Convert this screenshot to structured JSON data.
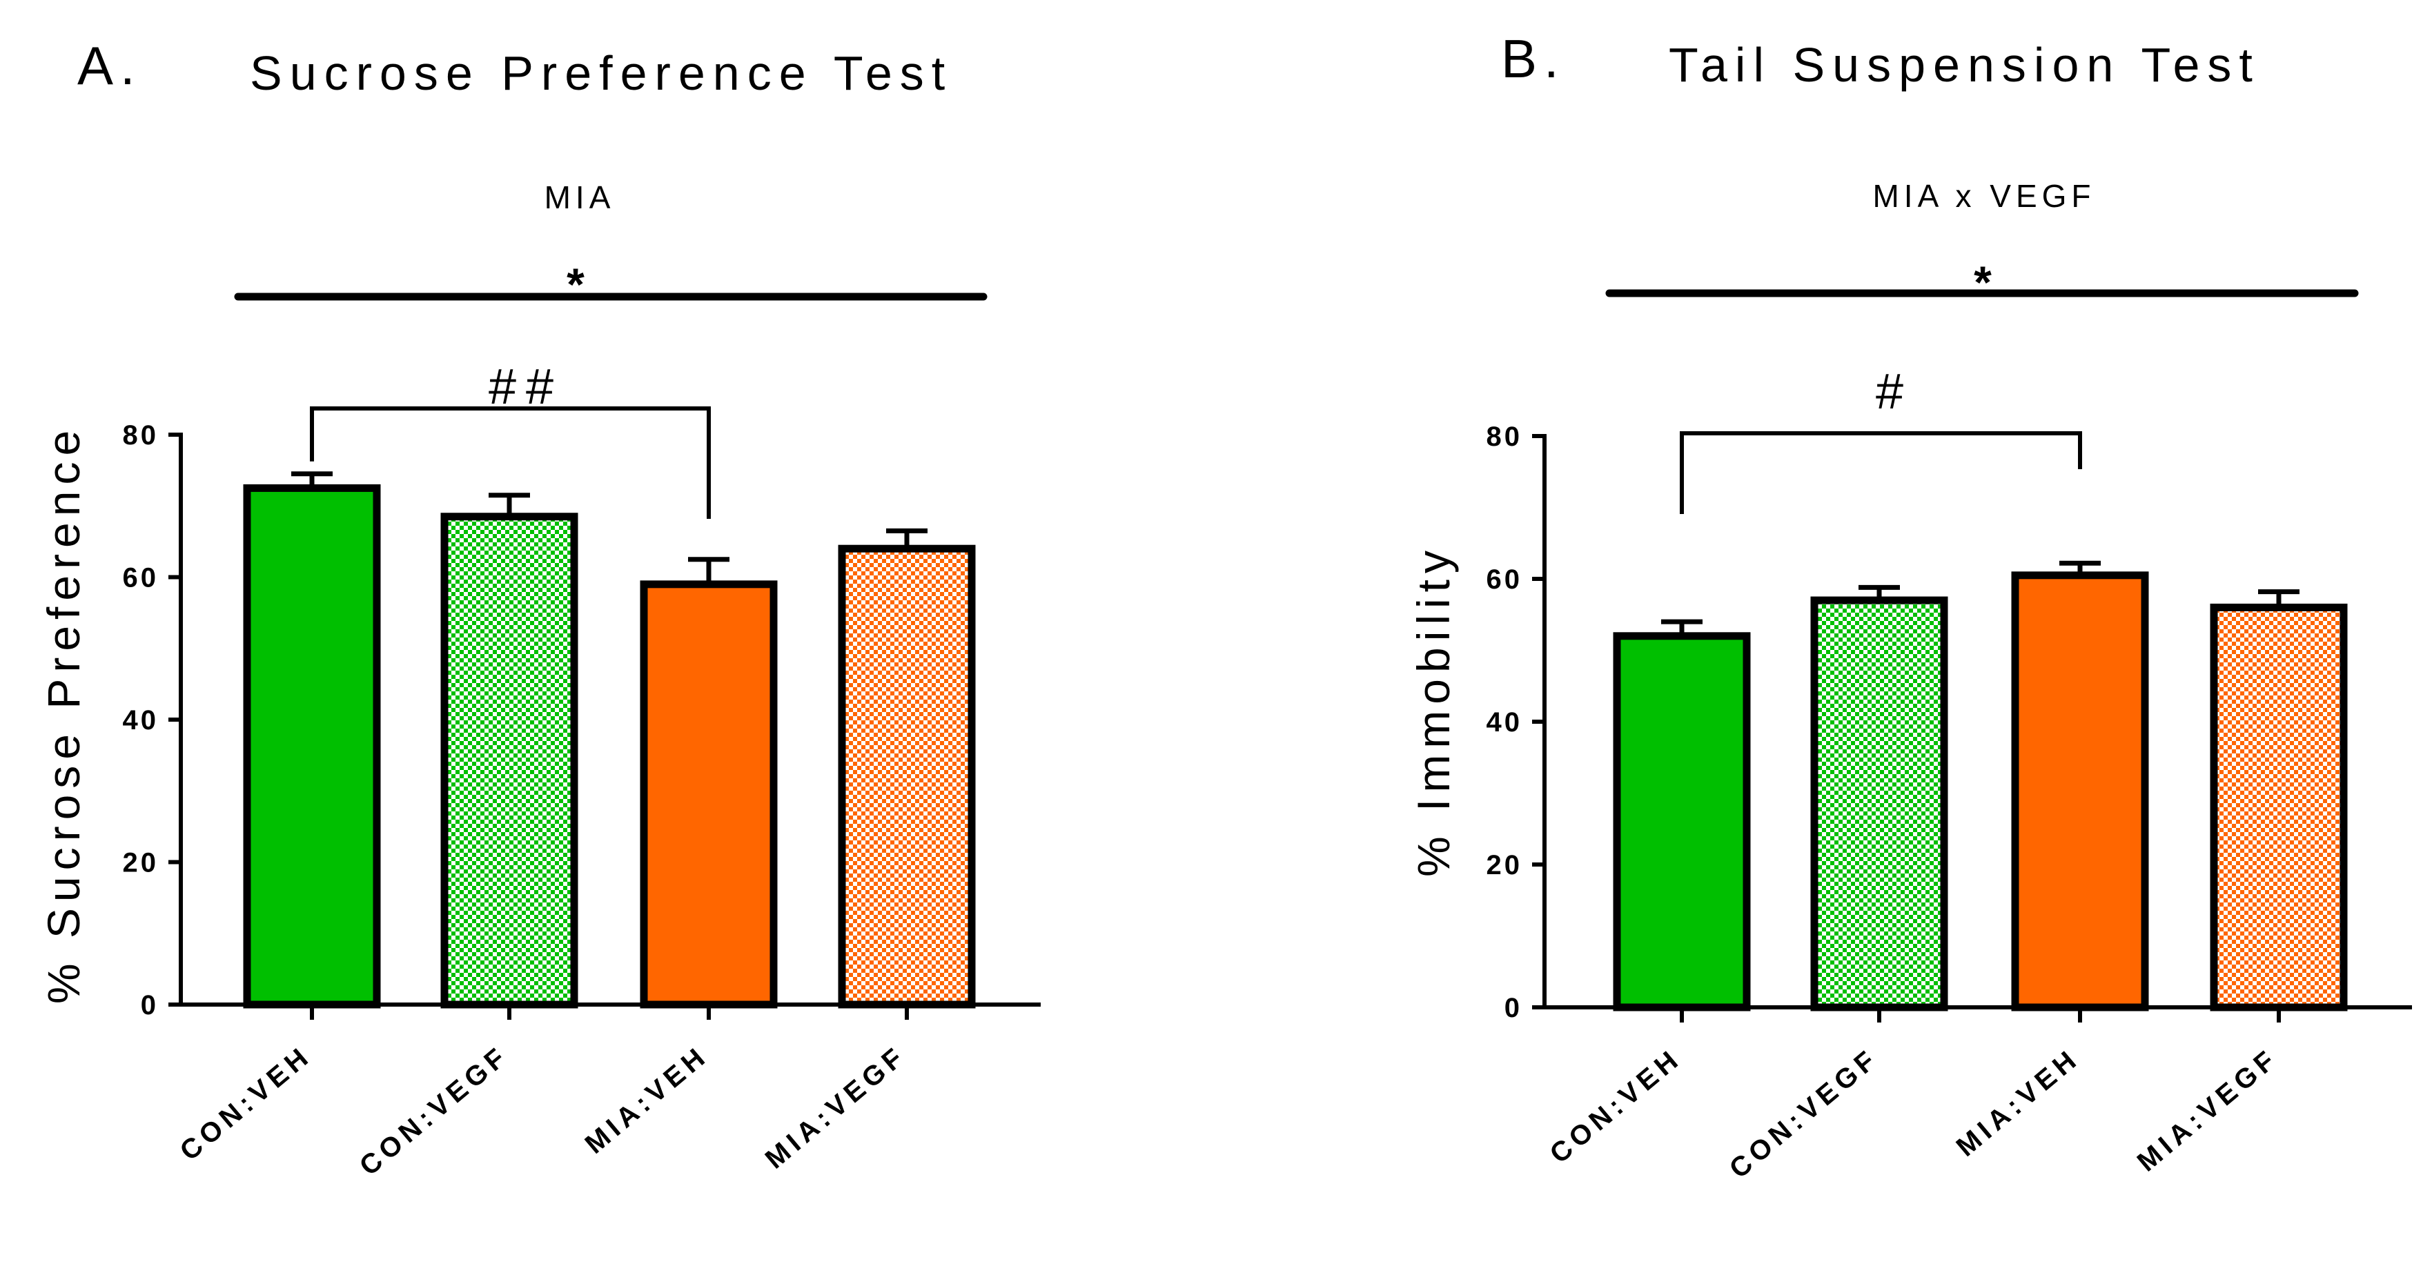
{
  "chart_data": [
    {
      "type": "bar",
      "panel": "A.",
      "title": "Sucrose Preference Test",
      "effect_label": "MIA",
      "significance_star": "*",
      "comparison_mark": "##",
      "comparison_between": [
        "CON:VEH",
        "MIA:VEH"
      ],
      "xlabel": "",
      "ylabel": "% Sucrose Preference",
      "ylim": [
        0,
        80
      ],
      "yticks": [
        0,
        20,
        40,
        60,
        80
      ],
      "categories": [
        "CON:VEH",
        "CON:VEGF",
        "MIA:VEH",
        "MIA:VEGF"
      ],
      "values": [
        72.5,
        68.5,
        59,
        64
      ],
      "errors": [
        2.0,
        3.0,
        3.5,
        2.5
      ],
      "colors": [
        "#00bf00",
        "#00bf00",
        "#ff6600",
        "#ff6600"
      ],
      "patterns": [
        "solid",
        "checker",
        "solid",
        "checker"
      ]
    },
    {
      "type": "bar",
      "panel": "B.",
      "title": "Tail Suspension Test",
      "effect_label": "MIA x VEGF",
      "significance_star": "*",
      "comparison_mark": "#",
      "comparison_between": [
        "CON:VEH",
        "MIA:VEH"
      ],
      "xlabel": "",
      "ylabel": "% Immobility",
      "ylim": [
        0,
        80
      ],
      "yticks": [
        0,
        20,
        40,
        60,
        80
      ],
      "categories": [
        "CON:VEH",
        "CON:VEGF",
        "MIA:VEH",
        "MIA:VEGF"
      ],
      "values": [
        52,
        57,
        60.5,
        56
      ],
      "errors": [
        2.0,
        1.8,
        1.7,
        2.2
      ],
      "colors": [
        "#00bf00",
        "#00bf00",
        "#ff6600",
        "#ff6600"
      ],
      "patterns": [
        "solid",
        "checker",
        "solid",
        "checker"
      ]
    }
  ]
}
